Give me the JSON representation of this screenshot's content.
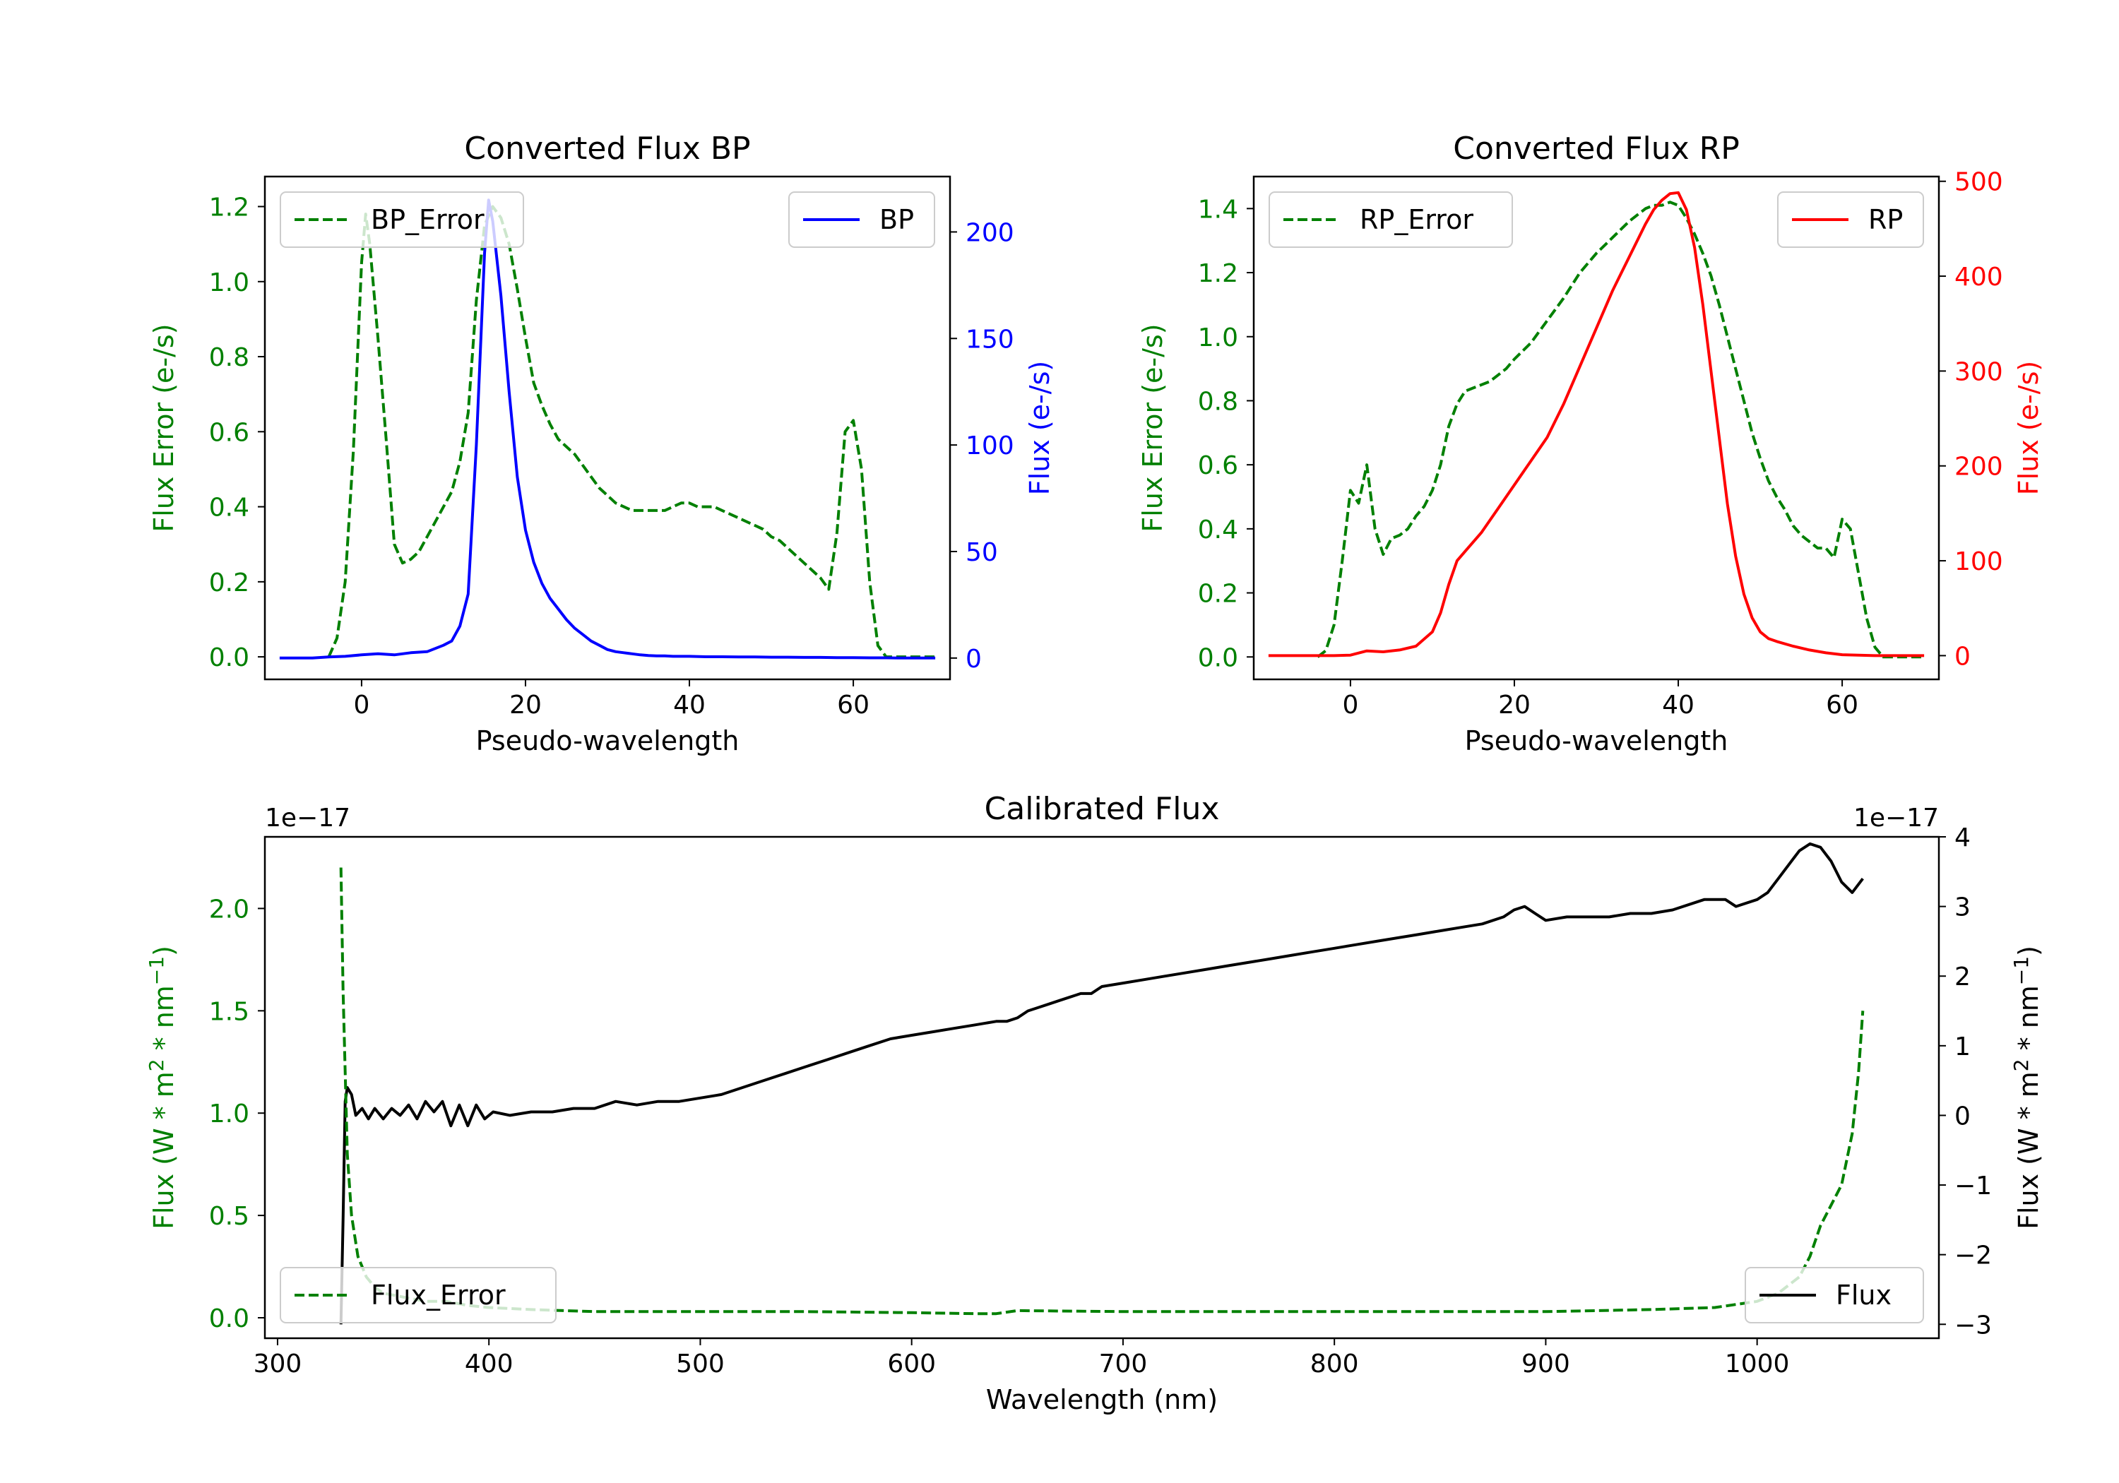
{
  "chart_data": [
    {
      "type": "line",
      "title": "Converted Flux BP",
      "xlabel": "Pseudo-wavelength",
      "xlim": [
        -11.8,
        71.8
      ],
      "xticks": [
        0,
        20,
        40,
        60
      ],
      "left_axis": {
        "label": "Flux Error (e-/s)",
        "color": "#008000",
        "lim": [
          -0.06,
          1.28
        ],
        "ticks": [
          0.0,
          0.2,
          0.4,
          0.6,
          0.8,
          1.0,
          1.2
        ]
      },
      "right_axis": {
        "label": "Flux (e-/s)",
        "color": "#0000ff",
        "lim": [
          -10,
          226
        ],
        "ticks": [
          0,
          50,
          100,
          150,
          200
        ]
      },
      "legend_left": "top-left",
      "legend_right": "top-right",
      "series": [
        {
          "name": "BP_Error",
          "axis": "left",
          "style": "dashed",
          "color": "#008000",
          "x": [
            -4,
            -3,
            -2,
            -1,
            0,
            0.5,
            1,
            2,
            3,
            4,
            5,
            6,
            7,
            8,
            9,
            10,
            11,
            12,
            13,
            14,
            15,
            16,
            17,
            18,
            19,
            20,
            21,
            22,
            23,
            24,
            25,
            26,
            27,
            28,
            29,
            30,
            31,
            32,
            33,
            34,
            35,
            36,
            37,
            38,
            39,
            40,
            41,
            42,
            43,
            44,
            45,
            46,
            47,
            48,
            49,
            50,
            51,
            52,
            53,
            54,
            55,
            56,
            57,
            58,
            59,
            60,
            61,
            62,
            63,
            64,
            65,
            66,
            67,
            68,
            69,
            70
          ],
          "values": [
            0.0,
            0.05,
            0.2,
            0.55,
            1.05,
            1.18,
            1.1,
            0.85,
            0.58,
            0.3,
            0.25,
            0.26,
            0.28,
            0.32,
            0.36,
            0.4,
            0.44,
            0.52,
            0.65,
            0.95,
            1.15,
            1.2,
            1.17,
            1.1,
            0.98,
            0.85,
            0.73,
            0.67,
            0.62,
            0.58,
            0.56,
            0.54,
            0.51,
            0.48,
            0.45,
            0.43,
            0.41,
            0.4,
            0.39,
            0.39,
            0.39,
            0.39,
            0.39,
            0.4,
            0.41,
            0.41,
            0.4,
            0.4,
            0.4,
            0.39,
            0.38,
            0.37,
            0.36,
            0.35,
            0.34,
            0.32,
            0.31,
            0.29,
            0.27,
            0.25,
            0.23,
            0.21,
            0.18,
            0.33,
            0.6,
            0.63,
            0.5,
            0.2,
            0.03,
            0.0,
            0.0,
            0.0,
            0.0,
            0.0,
            0.0,
            0.0
          ]
        },
        {
          "name": "BP",
          "axis": "right",
          "style": "solid",
          "color": "#0000ff",
          "x": [
            -10,
            -8,
            -6,
            -4,
            -2,
            0,
            2,
            4,
            6,
            8,
            10,
            11,
            12,
            13,
            14,
            15,
            15.5,
            16,
            17,
            18,
            19,
            20,
            21,
            22,
            23,
            24,
            25,
            26,
            27,
            28,
            29,
            30,
            31,
            32,
            33,
            34,
            35,
            36,
            37,
            38,
            39,
            40,
            42,
            44,
            46,
            48,
            50,
            52,
            54,
            56,
            58,
            60,
            62,
            64,
            66,
            68,
            70
          ],
          "values": [
            0,
            0,
            0,
            0.5,
            0.8,
            1.5,
            2,
            1.5,
            2.5,
            3,
            6,
            8,
            15,
            30,
            100,
            190,
            215,
            205,
            170,
            125,
            85,
            60,
            45,
            35,
            28,
            23,
            18,
            14,
            11,
            8,
            6,
            4,
            3,
            2.5,
            2,
            1.5,
            1.2,
            1,
            1,
            0.8,
            0.8,
            0.8,
            0.6,
            0.6,
            0.5,
            0.5,
            0.4,
            0.4,
            0.3,
            0.3,
            0.2,
            0.2,
            0.1,
            0.1,
            0,
            0,
            0
          ]
        }
      ]
    },
    {
      "type": "line",
      "title": "Converted Flux RP",
      "xlabel": "Pseudo-wavelength",
      "xlim": [
        -11.8,
        71.8
      ],
      "xticks": [
        0,
        20,
        40,
        60
      ],
      "left_axis": {
        "label": "Flux Error (e-/s)",
        "color": "#008000",
        "lim": [
          -0.07,
          1.5
        ],
        "ticks": [
          0.0,
          0.2,
          0.4,
          0.6,
          0.8,
          1.0,
          1.2,
          1.4
        ]
      },
      "right_axis": {
        "label": "Flux (e-/s)",
        "color": "#ff0000",
        "lim": [
          -25,
          505
        ],
        "ticks": [
          0,
          100,
          200,
          300,
          400,
          500
        ]
      },
      "legend_left": "top-left",
      "legend_right": "top-right",
      "series": [
        {
          "name": "RP_Error",
          "axis": "left",
          "style": "dashed",
          "color": "#008000",
          "x": [
            -4,
            -3,
            -2,
            -1,
            0,
            1,
            2,
            3,
            4,
            5,
            6,
            7,
            8,
            9,
            10,
            11,
            12,
            13,
            14,
            15,
            16,
            17,
            18,
            19,
            20,
            22,
            24,
            26,
            28,
            30,
            32,
            34,
            36,
            37,
            38,
            39,
            40,
            41,
            42,
            43,
            44,
            45,
            46,
            47,
            48,
            49,
            50,
            51,
            52,
            53,
            54,
            55,
            56,
            57,
            58,
            59,
            60,
            61,
            62,
            63,
            64,
            65,
            66,
            68,
            70
          ],
          "values": [
            0.0,
            0.02,
            0.1,
            0.3,
            0.52,
            0.48,
            0.6,
            0.4,
            0.32,
            0.37,
            0.38,
            0.4,
            0.44,
            0.47,
            0.52,
            0.6,
            0.72,
            0.79,
            0.83,
            0.84,
            0.85,
            0.86,
            0.88,
            0.9,
            0.93,
            0.98,
            1.05,
            1.12,
            1.2,
            1.26,
            1.31,
            1.36,
            1.4,
            1.41,
            1.41,
            1.42,
            1.41,
            1.37,
            1.32,
            1.26,
            1.19,
            1.1,
            1.0,
            0.9,
            0.8,
            0.7,
            0.62,
            0.55,
            0.5,
            0.46,
            0.41,
            0.38,
            0.36,
            0.34,
            0.34,
            0.31,
            0.43,
            0.4,
            0.26,
            0.12,
            0.03,
            0.0,
            0.0,
            0.0,
            0.0
          ]
        },
        {
          "name": "RP",
          "axis": "right",
          "style": "solid",
          "color": "#ff0000",
          "x": [
            -10,
            -6,
            -4,
            -2,
            0,
            2,
            4,
            6,
            8,
            10,
            11,
            12,
            13,
            14,
            16,
            18,
            20,
            22,
            24,
            26,
            28,
            30,
            32,
            34,
            36,
            37,
            38,
            39,
            40,
            41,
            42,
            43,
            44,
            45,
            46,
            47,
            48,
            49,
            50,
            51,
            52,
            54,
            56,
            58,
            60,
            62,
            64,
            66,
            68,
            70
          ],
          "values": [
            0,
            0,
            0,
            0,
            0.5,
            5,
            4,
            6,
            10,
            25,
            45,
            75,
            100,
            110,
            130,
            155,
            180,
            205,
            230,
            265,
            305,
            345,
            385,
            420,
            455,
            470,
            480,
            487,
            488,
            470,
            430,
            370,
            300,
            230,
            160,
            105,
            65,
            40,
            25,
            18,
            15,
            10,
            6,
            3,
            1,
            0.5,
            0,
            0,
            0,
            0
          ]
        }
      ]
    },
    {
      "type": "line",
      "title": "Calibrated Flux",
      "xlabel": "Wavelength (nm)",
      "xlim": [
        294,
        1086
      ],
      "xticks": [
        300,
        400,
        500,
        600,
        700,
        800,
        900,
        1000
      ],
      "left_axis": {
        "label": "Flux (W * m² * nm⁻¹)",
        "label_prefix": "Flux (W * m",
        "label_exp1": "2",
        "label_mid": " * nm",
        "label_exp2": "−1",
        "label_suffix": ")",
        "color": "#008000",
        "lim": [
          -0.1,
          2.35
        ],
        "ticks": [
          0.0,
          0.5,
          1.0,
          1.5,
          2.0
        ],
        "offset": "1e−17"
      },
      "right_axis": {
        "label": "Flux (W * m² * nm⁻¹)",
        "label_prefix": "Flux (W * m",
        "label_exp1": "2",
        "label_mid": " * nm",
        "label_exp2": "−1",
        "label_suffix": ")",
        "color": "#000000",
        "lim": [
          -3.2,
          4.0
        ],
        "ticks": [
          -3,
          -2,
          -1,
          0,
          1,
          2,
          3,
          4
        ],
        "offset": "1e−17"
      },
      "legend_left": "bottom-left",
      "legend_right": "bottom-right",
      "series": [
        {
          "name": "Flux",
          "axis": "right",
          "style": "solid",
          "color": "#000000",
          "x": [
            330,
            331,
            332,
            333,
            335,
            337,
            340,
            343,
            346,
            350,
            354,
            358,
            362,
            366,
            370,
            374,
            378,
            382,
            386,
            390,
            394,
            398,
            402,
            410,
            420,
            430,
            440,
            450,
            460,
            470,
            480,
            490,
            500,
            510,
            520,
            530,
            540,
            550,
            560,
            570,
            580,
            590,
            600,
            610,
            620,
            630,
            640,
            645,
            650,
            655,
            660,
            665,
            670,
            675,
            680,
            685,
            690,
            700,
            710,
            720,
            730,
            740,
            750,
            760,
            770,
            780,
            790,
            800,
            810,
            820,
            830,
            840,
            850,
            860,
            870,
            880,
            885,
            890,
            895,
            900,
            910,
            920,
            930,
            940,
            950,
            960,
            970,
            975,
            980,
            985,
            990,
            1000,
            1005,
            1010,
            1015,
            1020,
            1025,
            1030,
            1035,
            1040,
            1045,
            1050
          ],
          "values": [
            -3.0,
            -1.5,
            0.2,
            0.4,
            0.3,
            0.0,
            0.1,
            -0.05,
            0.1,
            -0.05,
            0.1,
            0.0,
            0.15,
            -0.05,
            0.2,
            0.05,
            0.2,
            -0.15,
            0.15,
            -0.15,
            0.15,
            -0.05,
            0.05,
            0.0,
            0.05,
            0.05,
            0.1,
            0.1,
            0.2,
            0.15,
            0.2,
            0.2,
            0.25,
            0.3,
            0.4,
            0.5,
            0.6,
            0.7,
            0.8,
            0.9,
            1.0,
            1.1,
            1.15,
            1.2,
            1.25,
            1.3,
            1.35,
            1.35,
            1.4,
            1.5,
            1.55,
            1.6,
            1.65,
            1.7,
            1.75,
            1.75,
            1.85,
            1.9,
            1.95,
            2.0,
            2.05,
            2.1,
            2.15,
            2.2,
            2.25,
            2.3,
            2.35,
            2.4,
            2.45,
            2.5,
            2.55,
            2.6,
            2.65,
            2.7,
            2.75,
            2.85,
            2.95,
            3.0,
            2.9,
            2.8,
            2.85,
            2.85,
            2.85,
            2.9,
            2.9,
            2.95,
            3.05,
            3.1,
            3.1,
            3.1,
            3.0,
            3.1,
            3.2,
            3.4,
            3.6,
            3.8,
            3.9,
            3.85,
            3.65,
            3.35,
            3.2,
            3.4
          ]
        },
        {
          "name": "Flux_Error",
          "axis": "left",
          "style": "dashed",
          "color": "#008000",
          "x": [
            330,
            331,
            332,
            333,
            335,
            338,
            342,
            346,
            350,
            360,
            370,
            380,
            390,
            400,
            420,
            450,
            500,
            550,
            600,
            630,
            640,
            650,
            700,
            750,
            800,
            850,
            900,
            950,
            980,
            1000,
            1010,
            1020,
            1025,
            1030,
            1035,
            1040,
            1045,
            1048,
            1050
          ],
          "values": [
            2.2,
            1.6,
            1.2,
            0.8,
            0.5,
            0.3,
            0.2,
            0.15,
            0.12,
            0.1,
            0.08,
            0.08,
            0.06,
            0.05,
            0.04,
            0.03,
            0.03,
            0.03,
            0.025,
            0.02,
            0.02,
            0.035,
            0.03,
            0.03,
            0.03,
            0.03,
            0.03,
            0.04,
            0.05,
            0.08,
            0.12,
            0.2,
            0.3,
            0.45,
            0.55,
            0.65,
            0.9,
            1.2,
            1.5
          ]
        }
      ]
    }
  ]
}
